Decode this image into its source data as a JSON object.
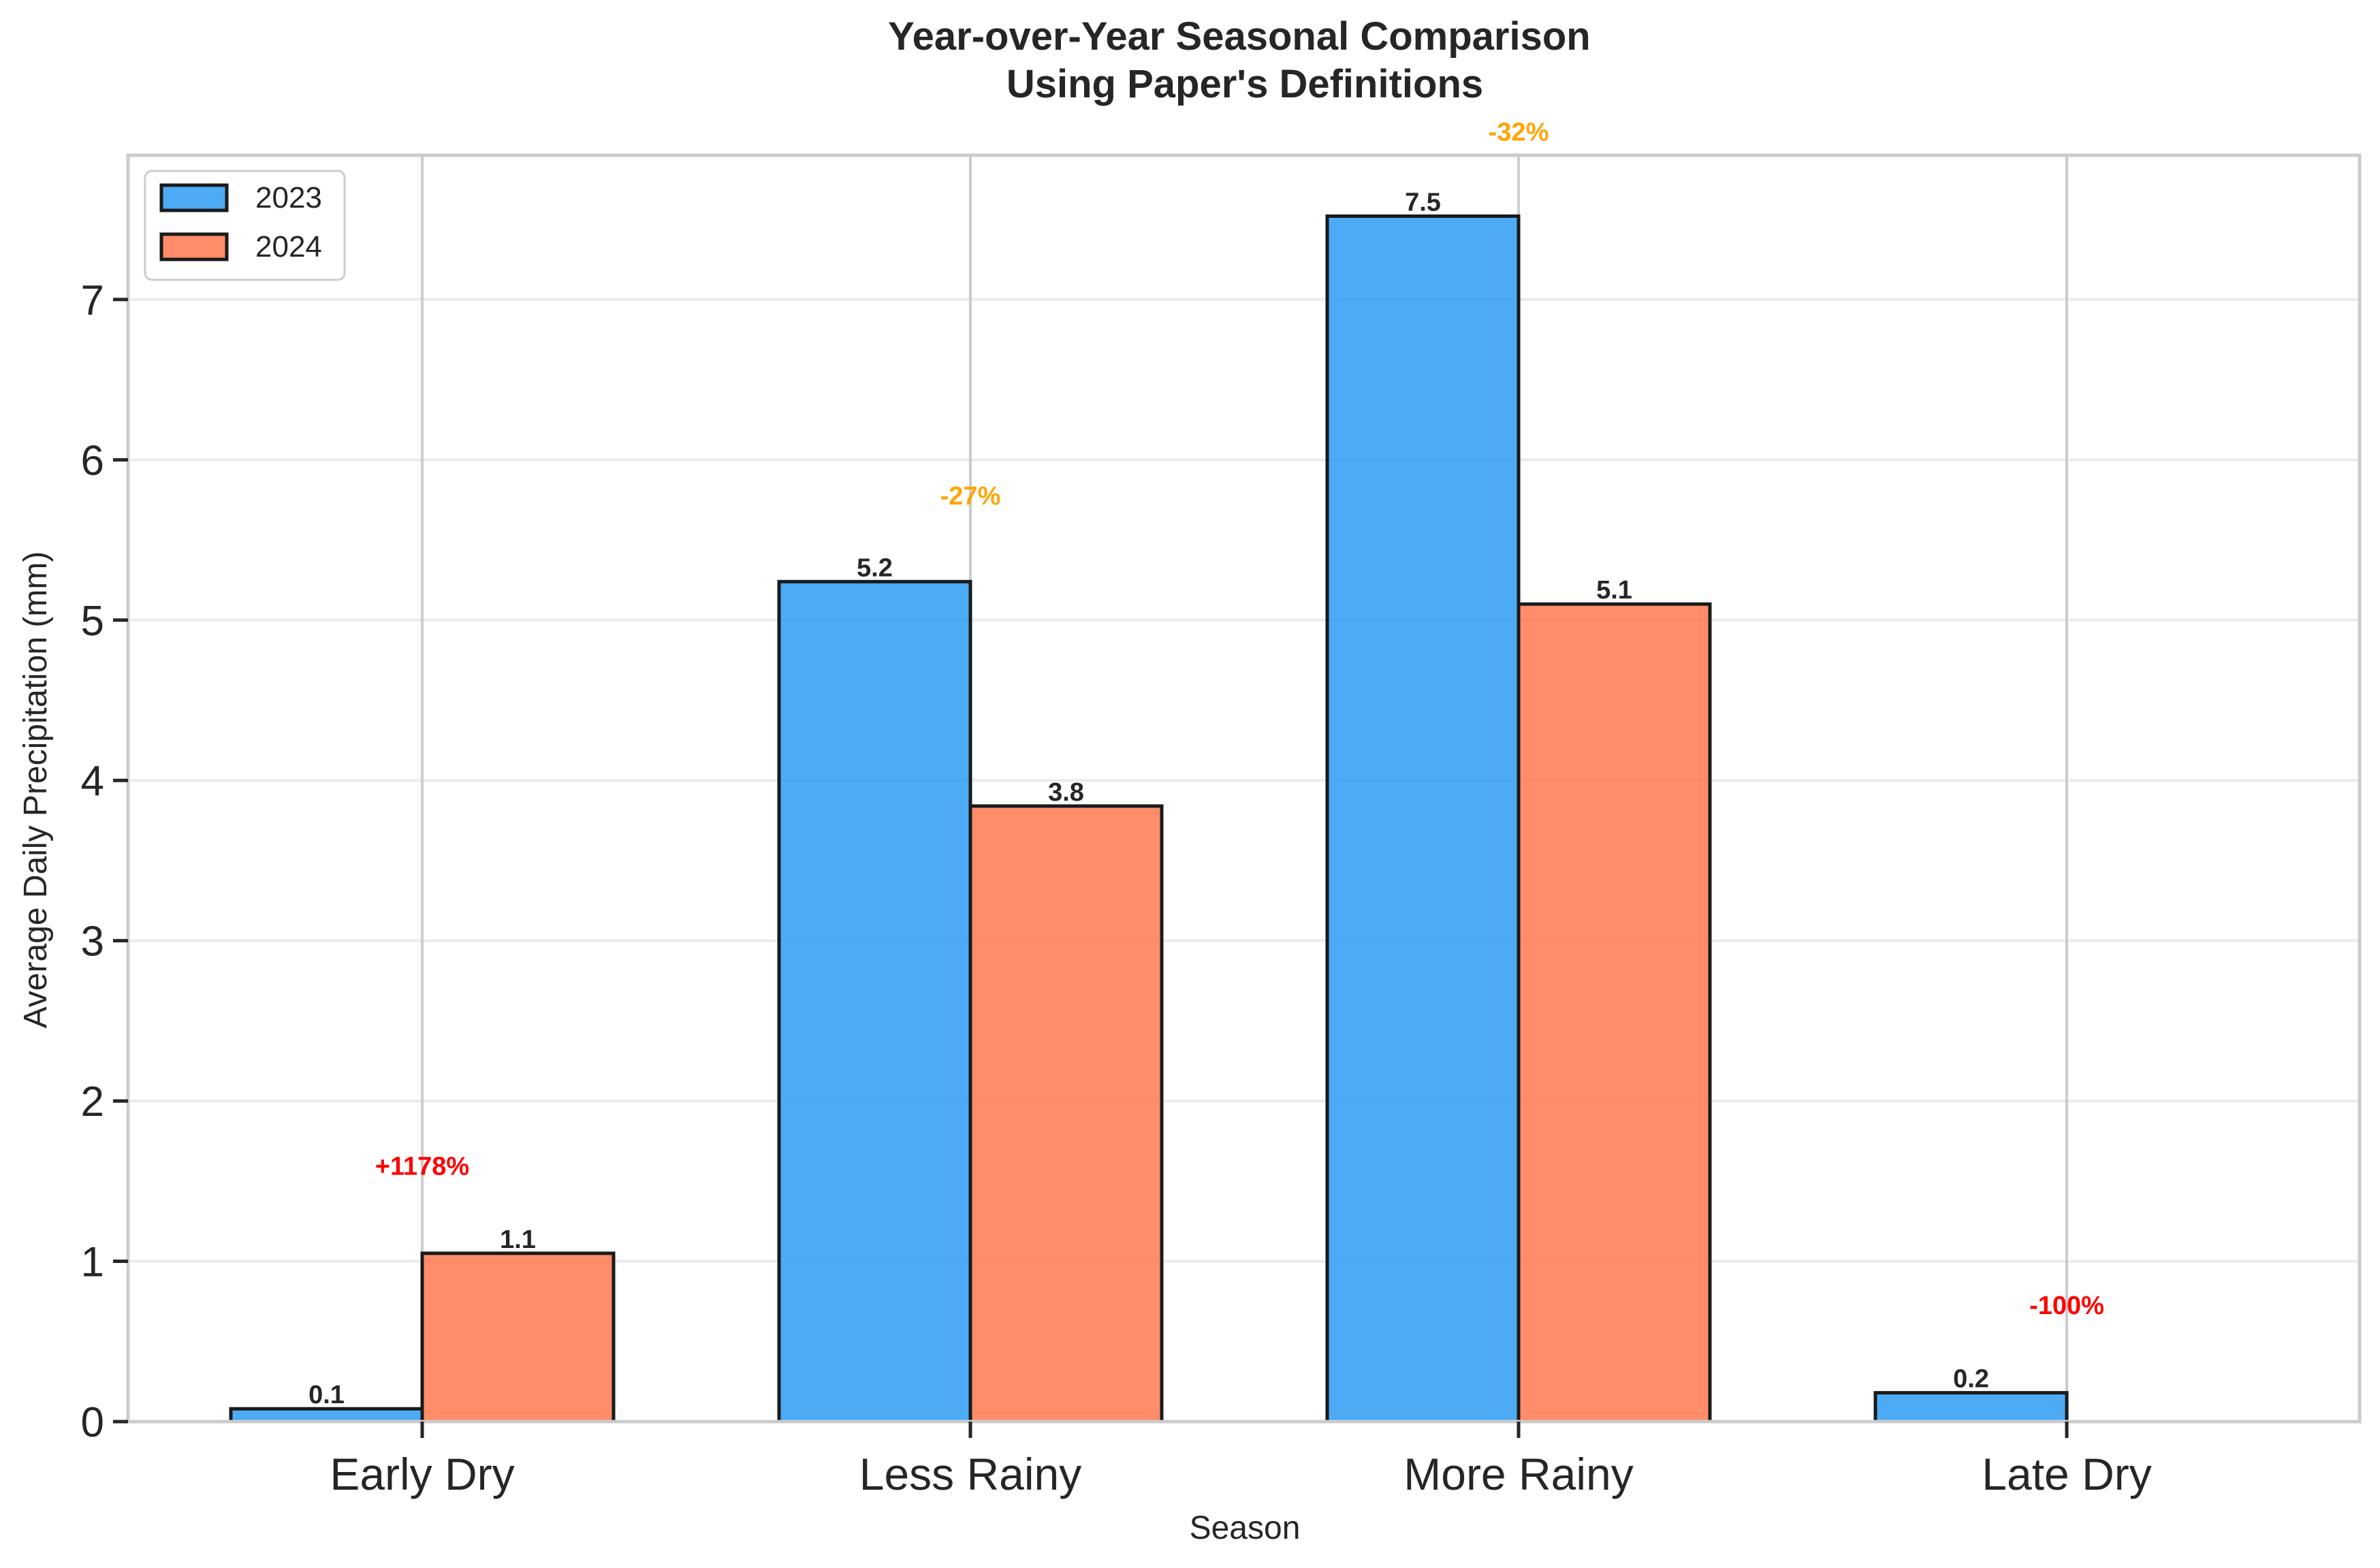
{
  "chart_data": {
    "type": "bar",
    "title": "Year-over-Year Seasonal Comparison\nUsing Paper's Definitions",
    "xlabel": "Season",
    "ylabel": "Average Daily Precipitation (mm)",
    "categories": [
      "Early Dry",
      "Less Rainy",
      "More Rainy",
      "Late Dry"
    ],
    "series": [
      {
        "name": "2023",
        "color": "#2196F3",
        "values": [
          0.08,
          5.24,
          7.52,
          0.18
        ],
        "labels": [
          "0.1",
          "5.2",
          "7.5",
          "0.2"
        ]
      },
      {
        "name": "2024",
        "color": "#FF7043",
        "values": [
          1.05,
          3.84,
          5.1,
          0.0
        ],
        "labels": [
          "1.1",
          "3.8",
          "5.1",
          ""
        ]
      }
    ],
    "percent_changes": [
      {
        "text": "+1178%",
        "color": "#FF0000",
        "value_y": 1.6
      },
      {
        "text": "-27%",
        "color": "#FFA500",
        "value_y": 5.78
      },
      {
        "text": "-32%",
        "color": "#FFA500",
        "value_y": 8.05
      },
      {
        "text": "-100%",
        "color": "#FF0000",
        "value_y": 0.73
      }
    ],
    "ylim": [
      0,
      7.9
    ],
    "yticks": [
      0,
      1,
      2,
      3,
      4,
      5,
      6,
      7
    ],
    "grid": true,
    "legend_position": "top-left"
  }
}
